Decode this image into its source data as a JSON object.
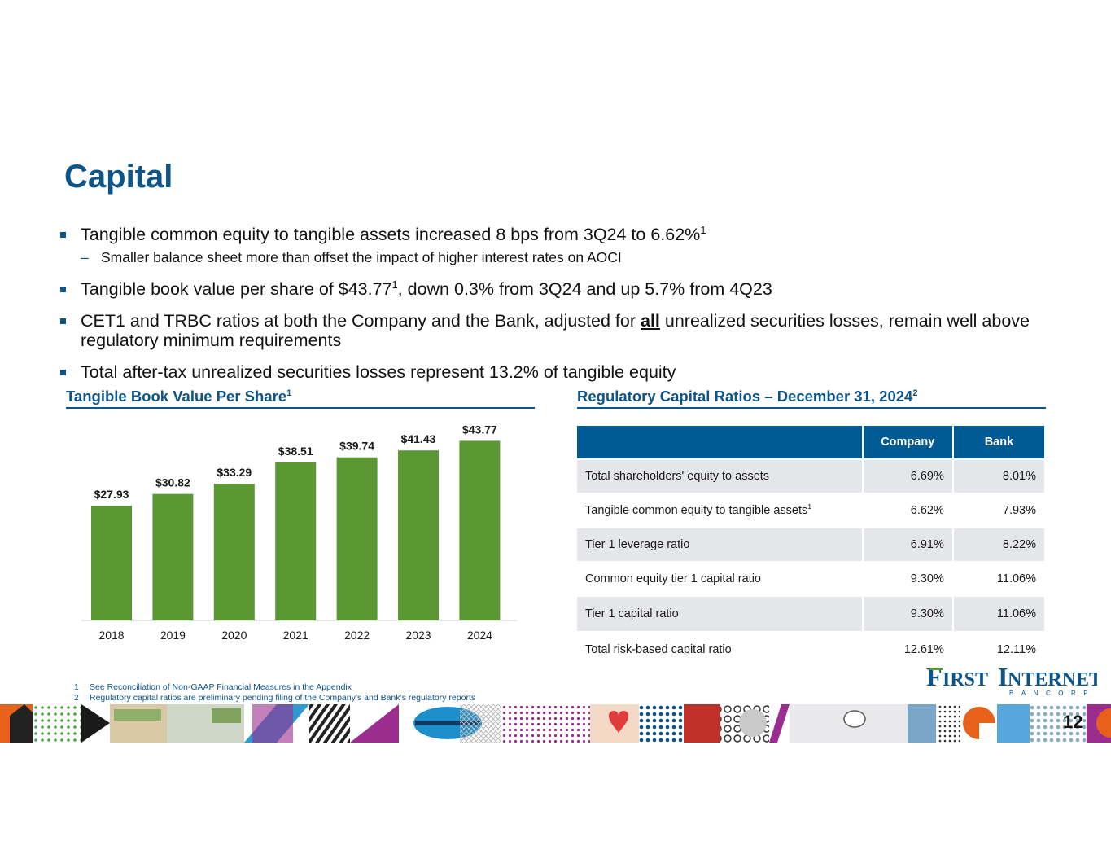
{
  "title": "Capital",
  "bullets": [
    {
      "text": "Tangible common equity to tangible assets increased 8 bps from 3Q24 to 6.62%",
      "sup": "1"
    },
    {
      "sub": "Smaller balance sheet more than offset the impact of higher interest rates on AOCI"
    },
    {
      "text_a": "Tangible book value per share of $43.77",
      "sup": "1",
      "text_b": ", down 0.3% from 3Q24 and up 5.7% from 4Q23"
    },
    {
      "text_a": "CET1 and TRBC ratios at both the Company and the Bank, adjusted for ",
      "emph": "all",
      "text_b": " unrealized securities losses, remain well above regulatory minimum requirements"
    },
    {
      "text": "Total after-tax unrealized securities losses represent 13.2% of tangible equity"
    }
  ],
  "left_section": {
    "title": "Tangible Book Value Per Share",
    "sup": "1"
  },
  "right_section": {
    "title": "Regulatory Capital Ratios – December 31, 2024",
    "sup": "2"
  },
  "chart_data": {
    "type": "bar",
    "title": "Tangible Book Value Per Share",
    "categories": [
      "2018",
      "2019",
      "2020",
      "2021",
      "2022",
      "2023",
      "2024"
    ],
    "values": [
      27.93,
      30.82,
      33.29,
      38.51,
      39.74,
      41.43,
      43.77
    ],
    "labels": [
      "$27.93",
      "$30.82",
      "$33.29",
      "$38.51",
      "$39.74",
      "$41.43",
      "$43.77"
    ],
    "ylim": [
      0,
      50
    ],
    "grid": false,
    "bar_color": "#5b9833"
  },
  "table": {
    "headers": [
      "",
      "Company",
      "Bank"
    ],
    "rows": [
      {
        "label": "Total shareholders' equity to assets",
        "sup": "",
        "company": "6.69%",
        "bank": "8.01%"
      },
      {
        "label": "Tangible common equity to tangible assets",
        "sup": "1",
        "company": "6.62%",
        "bank": "7.93%"
      },
      {
        "label": "Tier 1 leverage ratio",
        "sup": "",
        "company": "6.91%",
        "bank": "8.22%"
      },
      {
        "label": "Common equity tier 1 capital ratio",
        "sup": "",
        "company": "9.30%",
        "bank": "11.06%"
      },
      {
        "label": "Tier 1 capital ratio",
        "sup": "",
        "company": "9.30%",
        "bank": "11.06%"
      },
      {
        "label": "Total risk-based capital ratio",
        "sup": "",
        "company": "12.61%",
        "bank": "12.11%"
      }
    ]
  },
  "footnotes": [
    {
      "num": "1",
      "text": "See Reconciliation of Non-GAAP Financial Measures in the Appendix"
    },
    {
      "num": "2",
      "text": "Regulatory capital ratios are preliminary pending filing of the Company’s and Bank’s regulatory reports"
    }
  ],
  "logo": {
    "name": "First Internet Bancorp"
  },
  "page_number": "12",
  "colors": {
    "brand_blue": "#0d5489",
    "table_header": "#005a94",
    "bar_green": "#5b9833"
  }
}
